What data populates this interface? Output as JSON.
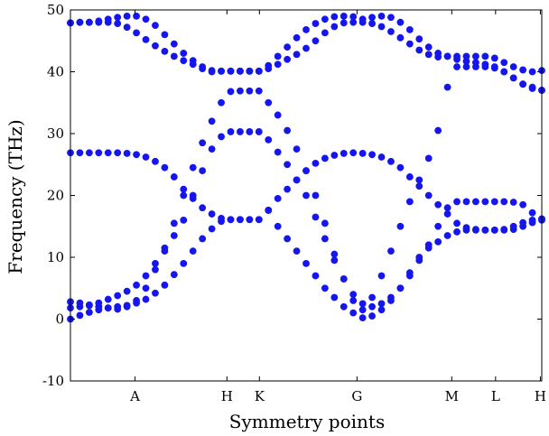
{
  "chart_data": {
    "type": "scatter",
    "title": "",
    "xlabel": "Symmetry points",
    "ylabel": "Frequency (THz)",
    "ylim": [
      -10,
      50
    ],
    "yticks": [
      -10,
      0,
      10,
      20,
      30,
      40,
      50
    ],
    "xlim": [
      0,
      100
    ],
    "xticks": [
      {
        "label": "A",
        "x": 13.7
      },
      {
        "label": "H",
        "x": 33.2
      },
      {
        "label": "K",
        "x": 40.1
      },
      {
        "label": "G",
        "x": 60.8
      },
      {
        "label": "M",
        "x": 80.9
      },
      {
        "label": "L",
        "x": 90.2
      },
      {
        "label": "H",
        "x": 99.7
      }
    ],
    "grid": false,
    "legend": "none",
    "marker_color": "#1515ee",
    "branches": [
      {
        "x": [
          0,
          2,
          4,
          6,
          8,
          10,
          12,
          14,
          16,
          18,
          20,
          22,
          24,
          26,
          28,
          30,
          32,
          34,
          36,
          38,
          40,
          42,
          44,
          46,
          48,
          50,
          52,
          54,
          56,
          58,
          60,
          62,
          64,
          66,
          68,
          70,
          72,
          74,
          76,
          78,
          80,
          82,
          84,
          86,
          88,
          90,
          92,
          94,
          96,
          98,
          100
        ],
        "y": [
          0,
          0.6,
          1.1,
          1.5,
          1.8,
          2.0,
          2.2,
          2.6,
          3.2,
          4.2,
          5.5,
          7.2,
          9.0,
          11.0,
          13.0,
          14.6,
          15.8,
          16.1,
          16.1,
          16.1,
          16.1,
          17.6,
          15.0,
          13.0,
          11.0,
          9.0,
          7.0,
          5.0,
          3.5,
          2.0,
          1.0,
          0.2,
          0.5,
          1.5,
          3.0,
          5.0,
          7.5,
          10.0,
          11.5,
          12.5,
          13.5,
          14.1,
          14.4,
          14.4,
          14.4,
          14.4,
          14.4,
          14.5,
          15.0,
          15.6,
          16.0
        ]
      },
      {
        "x": [
          0,
          2,
          4,
          6,
          8,
          10,
          12,
          14,
          16,
          18,
          20,
          22,
          24,
          26,
          28,
          30,
          32,
          34,
          36,
          38,
          40,
          42,
          44,
          46,
          48,
          50,
          52,
          54,
          56,
          58,
          60,
          62,
          64,
          66,
          68,
          70,
          72,
          74,
          76,
          78,
          80,
          82,
          84,
          86,
          88,
          90,
          92,
          94,
          96,
          98,
          100
        ],
        "y": [
          1.8,
          2.0,
          2.2,
          2.6,
          3.2,
          3.8,
          4.5,
          5.5,
          7.0,
          9.0,
          11.0,
          13.5,
          16.0,
          20.0,
          24.0,
          27.5,
          29.5,
          30.3,
          30.3,
          30.3,
          30.3,
          29.0,
          27.0,
          25.0,
          22.5,
          20.0,
          16.5,
          13.0,
          9.5,
          6.5,
          4.0,
          2.5,
          2.0,
          2.5,
          3.5,
          5.0,
          7.0,
          9.5,
          12.0,
          15.0,
          18.0,
          19.0,
          19.0,
          19.0,
          19.0,
          19.0,
          19.0,
          18.9,
          18.5,
          17.2,
          16.2
        ]
      },
      {
        "x": [
          0,
          2,
          4,
          6,
          8,
          10,
          12,
          14,
          16,
          18,
          20,
          22,
          24,
          26,
          28,
          30,
          32,
          34,
          36,
          38,
          40,
          42,
          44,
          46,
          48,
          50,
          52,
          54,
          56,
          58,
          60,
          62,
          64,
          66,
          68,
          70,
          72,
          74,
          76,
          78,
          80,
          82,
          84,
          86,
          88,
          90,
          92,
          94,
          96,
          98,
          100
        ],
        "y": [
          2.8,
          2.6,
          2.3,
          2.0,
          1.8,
          1.6,
          2.0,
          3.0,
          5.0,
          8.0,
          11.5,
          15.5,
          20.0,
          24.5,
          28.5,
          32.0,
          35.0,
          36.8,
          36.9,
          36.9,
          36.9,
          35.0,
          33.0,
          30.5,
          27.5,
          24.0,
          20.0,
          15.5,
          10.5,
          6.5,
          3.0,
          1.5,
          3.5,
          7.0,
          11.0,
          15.0,
          19.0,
          22.5,
          26.0,
          30.5,
          37.5,
          40.8,
          40.8,
          40.8,
          40.8,
          40.6,
          40.0,
          39.0,
          38.0,
          37.3,
          37.0
        ]
      },
      {
        "x": [
          0,
          2,
          4,
          6,
          8,
          10,
          12,
          14,
          16,
          18,
          20,
          22,
          24,
          26,
          28,
          30,
          32,
          34,
          36,
          38,
          40,
          42,
          44,
          46,
          48,
          50,
          52,
          54,
          56,
          58,
          60,
          62,
          64,
          66,
          68,
          70,
          72,
          74,
          76,
          78,
          80,
          82,
          84,
          86,
          88,
          90,
          92,
          94,
          96,
          98,
          100
        ],
        "y": [
          26.9,
          26.9,
          26.9,
          26.9,
          26.9,
          26.9,
          26.8,
          26.6,
          26.2,
          25.5,
          24.5,
          23.0,
          21.0,
          19.5,
          18.0,
          17.0,
          16.3,
          16.1,
          16.1,
          16.1,
          16.1,
          17.6,
          19.5,
          21.0,
          22.5,
          24.0,
          25.2,
          26.0,
          26.5,
          26.8,
          26.9,
          26.8,
          26.6,
          26.2,
          25.5,
          24.5,
          23.0,
          21.5,
          20.0,
          18.5,
          17.0,
          15.5,
          14.8,
          14.5,
          14.4,
          14.4,
          14.5,
          15.0,
          15.6,
          16.0,
          16.2
        ]
      },
      {
        "x": [
          0,
          2,
          4,
          6,
          8,
          10,
          12,
          14,
          16,
          18,
          20,
          22,
          24,
          26,
          28,
          30,
          32,
          34,
          36,
          38,
          40,
          42,
          44,
          46,
          48,
          50,
          52,
          54,
          56,
          58,
          60,
          62,
          64,
          66,
          68,
          70,
          72,
          74,
          76,
          78,
          80,
          82,
          84,
          86,
          88,
          90,
          92,
          94,
          96,
          98,
          100
        ],
        "y": [
          47.9,
          48.0,
          48.0,
          48.0,
          48.0,
          47.8,
          47.2,
          46.3,
          45.2,
          44.2,
          43.3,
          42.5,
          41.8,
          41.2,
          40.5,
          40.0,
          40.1,
          40.1,
          40.1,
          40.1,
          40.1,
          40.5,
          41.2,
          42.0,
          42.8,
          43.8,
          45.0,
          46.3,
          47.3,
          47.9,
          48.0,
          48.0,
          47.8,
          47.3,
          46.5,
          45.5,
          44.5,
          43.5,
          42.8,
          42.4,
          42.5,
          42.5,
          42.5,
          42.5,
          42.5,
          42.2,
          41.5,
          40.8,
          40.3,
          40.0,
          40.2
        ]
      },
      {
        "x": [
          0,
          2,
          4,
          6,
          8,
          10,
          12,
          14,
          16,
          18,
          20,
          22,
          24,
          26,
          28,
          30,
          32,
          34,
          36,
          38,
          40,
          42,
          44,
          46,
          48,
          50,
          52,
          54,
          56,
          58,
          60,
          62,
          64,
          66,
          68,
          70,
          72,
          74,
          76,
          78,
          80,
          82,
          84,
          86,
          88,
          90,
          92,
          94,
          96,
          98,
          100
        ],
        "y": [
          47.9,
          48.0,
          48.0,
          48.2,
          48.5,
          48.8,
          49.0,
          49.0,
          48.5,
          47.5,
          46.0,
          44.5,
          43.0,
          41.8,
          40.8,
          40.2,
          40.1,
          40.1,
          40.1,
          40.1,
          40.1,
          41.0,
          42.5,
          44.0,
          45.5,
          46.8,
          47.8,
          48.5,
          48.9,
          49.0,
          48.9,
          48.5,
          48.8,
          49.0,
          48.8,
          48.0,
          46.8,
          45.3,
          44.0,
          43.0,
          42.5,
          42.0,
          41.7,
          41.5,
          41.2,
          40.8,
          40.0,
          39.0,
          38.0,
          37.5,
          37.0
        ]
      }
    ]
  }
}
